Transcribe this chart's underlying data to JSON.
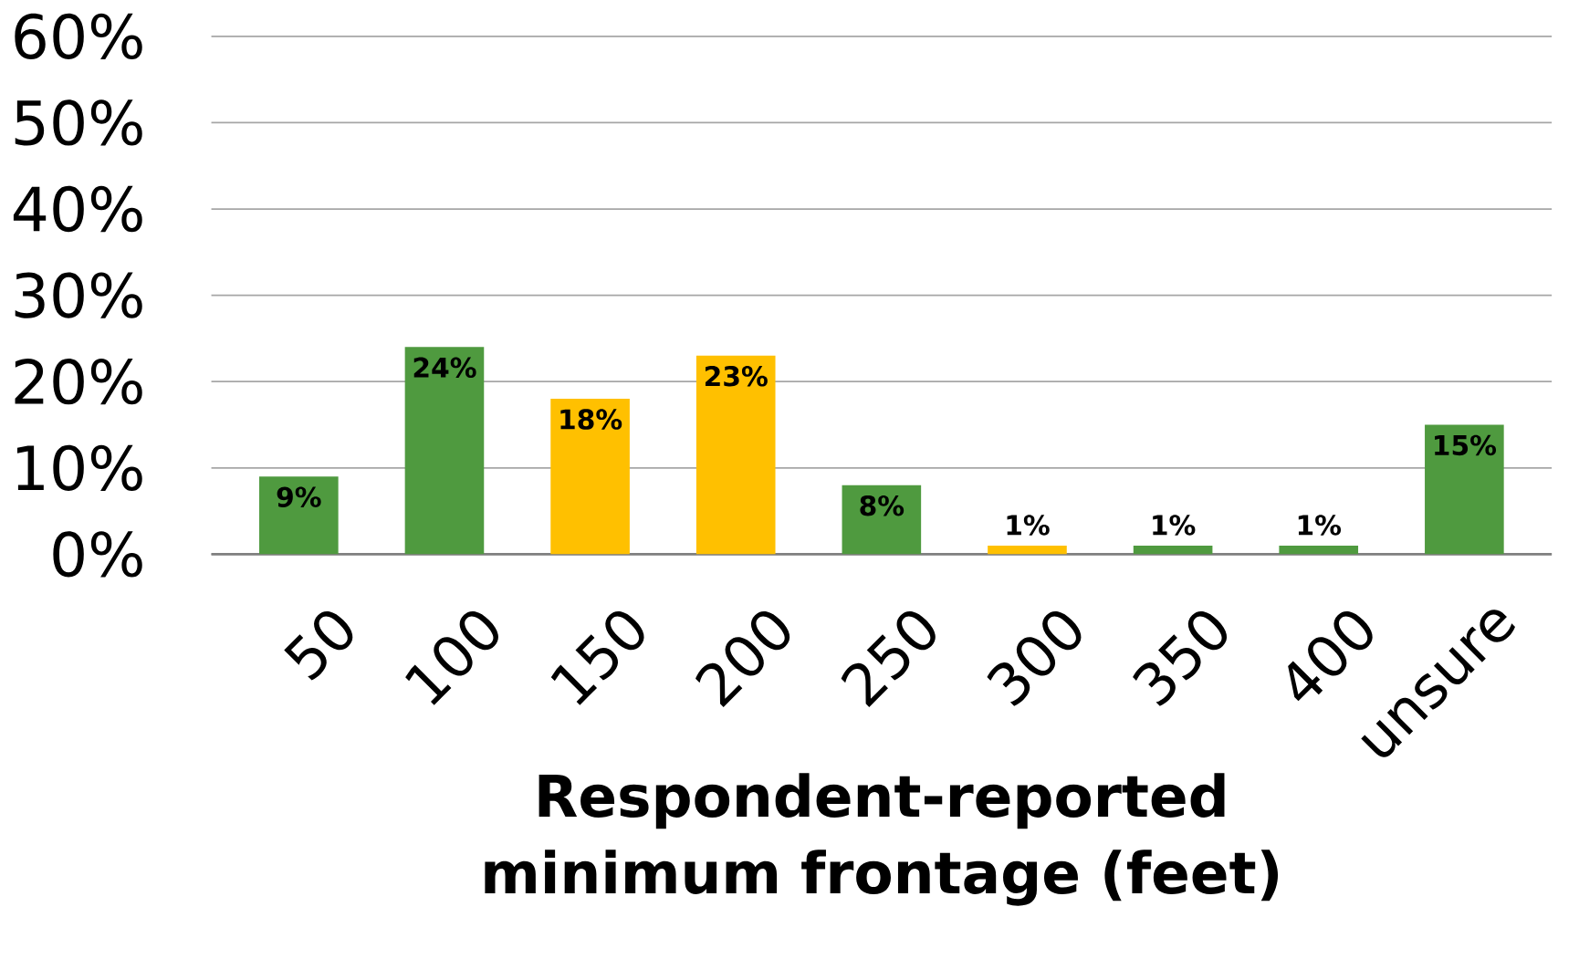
{
  "chart_data": {
    "type": "bar",
    "xlabel": "Respondent-reported minimum frontage (feet)",
    "categories": [
      "50",
      "100",
      "150",
      "200",
      "250",
      "300",
      "350",
      "400",
      "unsure"
    ],
    "values": [
      9,
      24,
      18,
      23,
      8,
      1,
      1,
      1,
      15
    ],
    "value_labels": [
      "9%",
      "24%",
      "18%",
      "23%",
      "8%",
      "1%",
      "1%",
      "1%",
      "15%"
    ],
    "colors": [
      "#4f9a3f",
      "#4f9a3f",
      "#ffc000",
      "#ffc000",
      "#4f9a3f",
      "#ffc000",
      "#4f9a3f",
      "#4f9a3f",
      "#4f9a3f"
    ],
    "ylim": [
      0,
      60
    ],
    "yticks": [
      {
        "value": 0,
        "label": "0%"
      },
      {
        "value": 10,
        "label": "10%"
      },
      {
        "value": 20,
        "label": "20%"
      },
      {
        "value": 30,
        "label": "30%"
      },
      {
        "value": 40,
        "label": "40%"
      },
      {
        "value": 50,
        "label": "50%"
      },
      {
        "value": 60,
        "label": "60%"
      }
    ],
    "grid": "y"
  }
}
